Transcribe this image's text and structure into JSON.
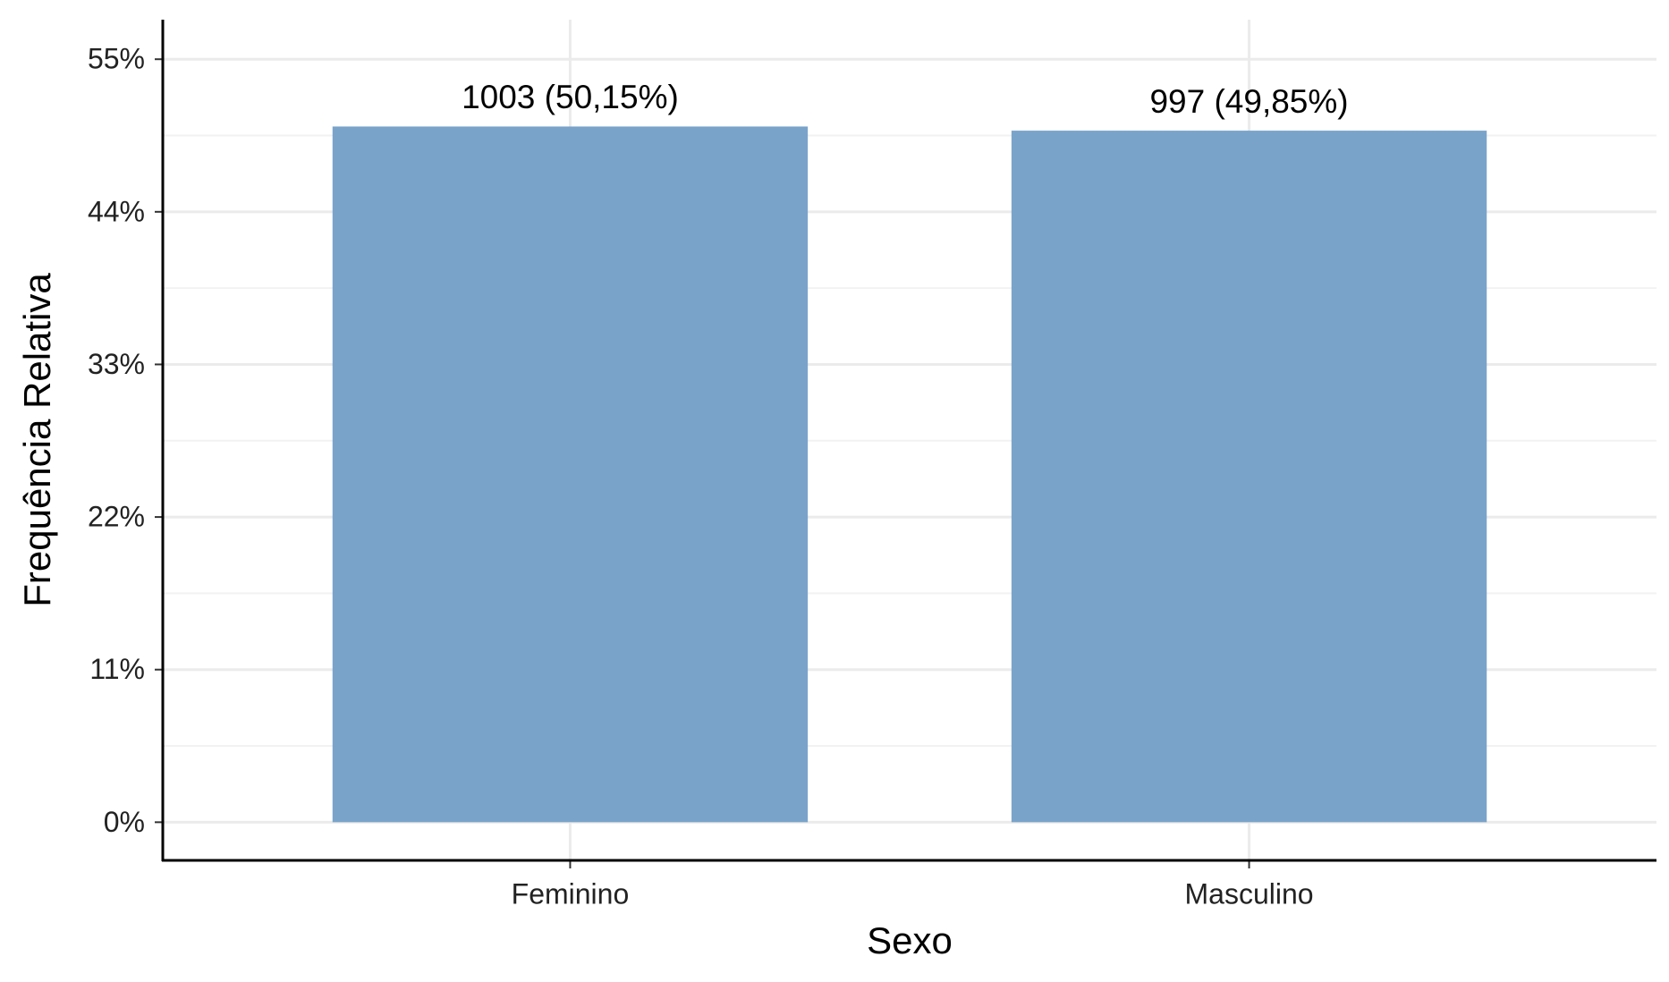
{
  "chart_data": {
    "type": "bar",
    "x_label": "Sexo",
    "y_label": "Frequência Relativa",
    "categories": [
      "Feminino",
      "Masculino"
    ],
    "values": [
      50.15,
      49.85
    ],
    "value_labels": [
      "1003 (50,15%)",
      "997 (49,85%)"
    ],
    "color": "#7aa3ca",
    "ylim": [
      -2.75,
      57.85
    ],
    "yticks": [
      {
        "value": 0,
        "label": "0%"
      },
      {
        "value": 11,
        "label": "11%"
      },
      {
        "value": 22,
        "label": "22%"
      },
      {
        "value": 33,
        "label": "33%"
      },
      {
        "value": 44,
        "label": "44%"
      },
      {
        "value": 55,
        "label": "55%"
      }
    ],
    "grid": true
  }
}
